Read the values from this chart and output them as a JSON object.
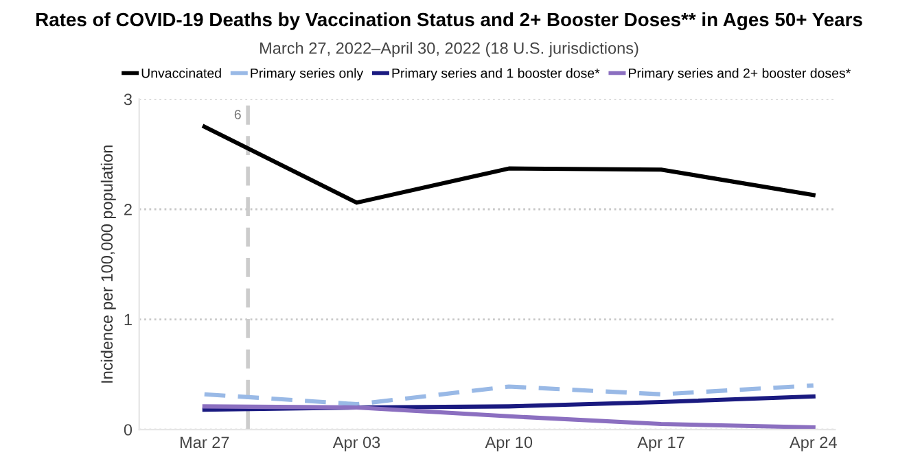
{
  "chart_data": {
    "type": "line",
    "title": "Rates of COVID-19 Deaths by Vaccination Status and 2+ Booster Doses** in Ages 50+ Years",
    "subtitle": "March 27, 2022–April 30, 2022 (18 U.S. jurisdictions)",
    "ylabel": "Incidence per 100,000 population",
    "x": [
      "2022-03-27",
      "2022-04-03",
      "2022-04-10",
      "2022-04-17",
      "2022-04-24"
    ],
    "series": [
      {
        "name": "Unvaccinated",
        "color": "#000000",
        "values": [
          2.75,
          2.06,
          2.37,
          2.36,
          2.13
        ]
      },
      {
        "name": "Primary series only",
        "color": "#99b9e6",
        "line_style": "dashed",
        "values": [
          0.32,
          0.23,
          0.39,
          0.32,
          0.4
        ]
      },
      {
        "name": "Primary series and 1 booster dose*",
        "color": "#1a1a80",
        "values": [
          0.18,
          0.2,
          0.21,
          0.25,
          0.3
        ]
      },
      {
        "name": "Primary series and 2+ booster doses*",
        "color": "#8b6fc0",
        "values": [
          0.21,
          0.2,
          0.12,
          0.05,
          0.02
        ]
      }
    ],
    "xlim": [
      "2022-03-24",
      "2022-04-25"
    ],
    "xticks": [
      {
        "value": "2022-03-27",
        "label": "Mar 27"
      },
      {
        "value": "2022-04-03",
        "label": "Apr 03"
      },
      {
        "value": "2022-04-10",
        "label": "Apr 10"
      },
      {
        "value": "2022-04-17",
        "label": "Apr 17"
      },
      {
        "value": "2022-04-24",
        "label": "Apr 24"
      }
    ],
    "ylim": [
      0,
      3
    ],
    "yticks": [
      0,
      1,
      2,
      3
    ],
    "ref_lines": [
      {
        "axis": "x",
        "value": "2022-03-29",
        "label": "6",
        "color": "#cccccc",
        "line_style": "dashed"
      }
    ],
    "grid": "y",
    "legend": "top",
    "line_style": "solid",
    "marker": "none"
  }
}
